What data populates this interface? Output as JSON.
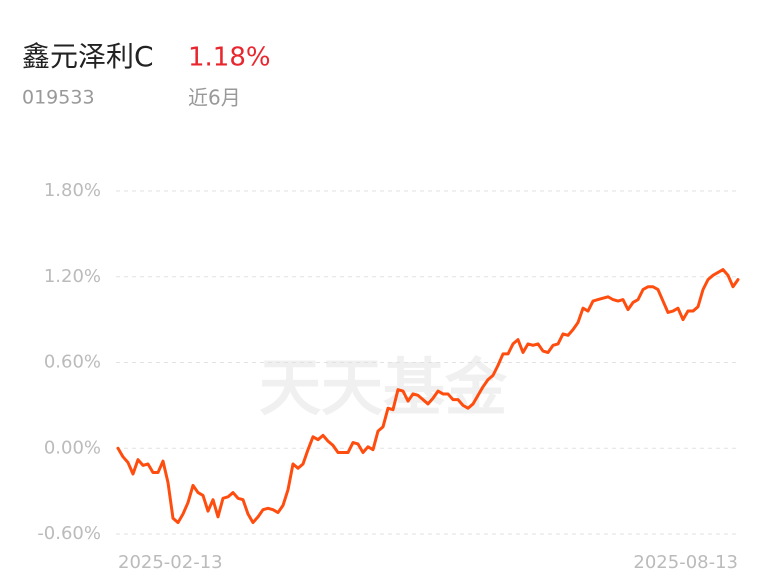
{
  "header": {
    "name": "鑫元泽利C",
    "return": "1.18%",
    "code": "019533",
    "period": "近6月"
  },
  "watermark": "天天基金",
  "chart_data": {
    "type": "line",
    "categories": [
      "2025-02-13",
      null,
      null,
      null,
      null,
      null,
      null,
      null,
      null,
      null,
      null,
      null,
      null,
      null,
      null,
      null,
      null,
      null,
      null,
      null,
      null,
      null,
      null,
      null,
      null,
      null,
      null,
      null,
      null,
      null,
      null,
      null,
      null,
      null,
      null,
      null,
      null,
      null,
      null,
      null,
      null,
      null,
      null,
      null,
      null,
      null,
      null,
      null,
      null,
      null,
      null,
      null,
      null,
      null,
      null,
      null,
      null,
      null,
      null,
      null,
      null,
      null,
      null,
      null,
      null,
      null,
      null,
      null,
      null,
      null,
      null,
      null,
      null,
      null,
      null,
      null,
      null,
      null,
      null,
      null,
      null,
      null,
      null,
      null,
      null,
      null,
      null,
      null,
      null,
      null,
      null,
      null,
      null,
      null,
      null,
      null,
      null,
      null,
      null,
      null,
      null,
      null,
      null,
      null,
      null,
      null,
      null,
      null,
      null,
      null,
      null,
      null,
      null,
      null,
      null,
      null,
      null,
      null,
      null,
      null,
      null,
      null,
      null,
      null,
      "2025-08-13"
    ],
    "values": [
      0,
      -0.06,
      -0.1,
      -0.18,
      -0.08,
      -0.12,
      -0.11,
      -0.17,
      -0.17,
      -0.09,
      -0.24,
      -0.49,
      -0.52,
      -0.46,
      -0.38,
      -0.26,
      -0.31,
      -0.33,
      -0.44,
      -0.36,
      -0.48,
      -0.35,
      -0.34,
      -0.31,
      -0.35,
      -0.36,
      -0.46,
      -0.52,
      -0.48,
      -0.43,
      -0.42,
      -0.43,
      -0.45,
      -0.4,
      -0.29,
      -0.11,
      -0.14,
      -0.11,
      -0.01,
      0.08,
      0.06,
      0.09,
      0.05,
      0.02,
      -0.03,
      -0.03,
      -0.03,
      0.04,
      0.03,
      -0.03,
      0.01,
      -0.01,
      0.12,
      0.15,
      0.28,
      0.27,
      0.41,
      0.4,
      0.33,
      0.38,
      0.37,
      0.34,
      0.31,
      0.35,
      0.4,
      0.38,
      0.38,
      0.34,
      0.34,
      0.3,
      0.28,
      0.31,
      0.37,
      0.43,
      0.48,
      0.51,
      0.58,
      0.66,
      0.66,
      0.73,
      0.76,
      0.67,
      0.73,
      0.72,
      0.73,
      0.68,
      0.67,
      0.72,
      0.73,
      0.8,
      0.79,
      0.83,
      0.88,
      0.98,
      0.96,
      1.03,
      1.04,
      1.05,
      1.06,
      1.04,
      1.03,
      1.04,
      0.97,
      1.02,
      1.04,
      1.11,
      1.13,
      1.13,
      1.11,
      1.03,
      0.95,
      0.96,
      0.98,
      0.9,
      0.96,
      0.96,
      0.99,
      1.11,
      1.18,
      1.21,
      1.23,
      1.25,
      1.21,
      1.13,
      1.18
    ],
    "color": "#ff4d0f",
    "ylim": [
      -0.6,
      1.8
    ],
    "yticks": [
      {
        "value": 1.8,
        "label": "1.80%"
      },
      {
        "value": 1.2,
        "label": "1.20%"
      },
      {
        "value": 0.6,
        "label": "0.60%"
      },
      {
        "value": 0,
        "label": "0.00%"
      },
      {
        "value": -0.6,
        "label": "-0.60%"
      }
    ],
    "grid": true
  }
}
